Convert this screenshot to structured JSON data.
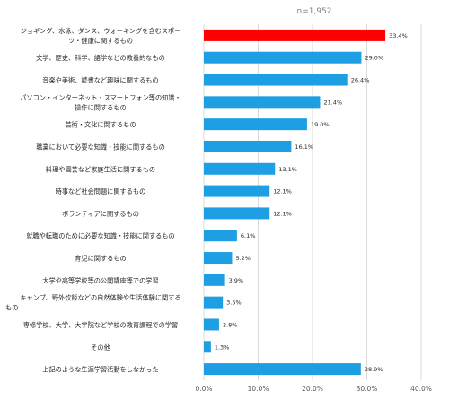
{
  "chart_data": {
    "type": "bar",
    "orientation": "horizontal",
    "note": "n=1,952",
    "categories": [
      "ジョギング、水泳、ダンス、ウォーキングを含むスポーツ・健康に関するもの",
      "文学、歴史、科学、語学などの教養的なもの",
      "音楽や美術、読書など趣味に関するもの",
      "パソコン・インターネット・スマートフォン等の知識・操作に関するもの",
      "芸術・文化に関するもの",
      "職業において必要な知識・技能に関するもの",
      "料理や園芸など家庭生活に関するもの",
      "時事など社会問題に関するもの",
      "ボランティアに関するもの",
      "就職や転職のために必要な知識・技能に関するもの",
      "育児に関するもの",
      "大学や高等学校等の公開講座等での学習",
      "キャンプ、野外炊飯などの自然体験や生活体験に関するもの",
      "専修学校、大学、大学院など学校の教育課程での学習",
      "その他",
      "上記のような生涯学習活動をしなかった"
    ],
    "values": [
      33.4,
      29.0,
      26.4,
      21.4,
      19.0,
      16.1,
      13.1,
      12.1,
      12.1,
      6.1,
      5.2,
      3.9,
      3.5,
      2.8,
      1.3,
      28.9
    ],
    "value_labels": [
      "33.4%",
      "29.0%",
      "26.4%",
      "21.4%",
      "19.0%",
      "16.1%",
      "13.1%",
      "12.1%",
      "12.1%",
      "6.1%",
      "5.2%",
      "3.9%",
      "3.5%",
      "2.8%",
      "1.3%",
      "28.9%"
    ],
    "label_lines": [
      [
        "ジョギング、水泳、ダンス、ウォーキングを含むスポー",
        "ツ・健康に関するもの"
      ],
      [
        "文学、歴史、科学、語学などの教養的なもの"
      ],
      [
        "音楽や美術、読書など趣味に関するもの"
      ],
      [
        "パソコン・インターネット・スマートフォン等の知識・",
        "操作に関するもの"
      ],
      [
        "芸術・文化に関するもの"
      ],
      [
        "職業において必要な知識・技能に関するもの"
      ],
      [
        "料理や園芸など家庭生活に関するもの"
      ],
      [
        "時事など社会問題に関するもの"
      ],
      [
        "ボランティアに関するもの"
      ],
      [
        "就職や転職のために必要な知識・技能に関するもの"
      ],
      [
        "育児に関するもの"
      ],
      [
        "大学や高等学校等の公開講座等での学習"
      ],
      [
        "キャンプ、野外炊飯などの自然体験や生活体験に関する",
        "もの"
      ],
      [
        "専修学校、大学、大学院など学校の教育課程での学習"
      ],
      [
        "その他"
      ],
      [
        "上記のような生涯学習活動をしなかった"
      ]
    ],
    "highlight_index": 0,
    "xlim": [
      0,
      40
    ],
    "xticks": [
      0,
      10,
      20,
      30,
      40
    ],
    "xtick_labels": [
      "0.0%",
      "10.0%",
      "20.0%",
      "30.0%",
      "40.0%"
    ],
    "grid": true,
    "colors": {
      "bar": "#1E9FE3",
      "highlight": "#FF0000",
      "grid": "#D9D9D9",
      "text": "#262626",
      "tick_text": "#595959"
    }
  }
}
